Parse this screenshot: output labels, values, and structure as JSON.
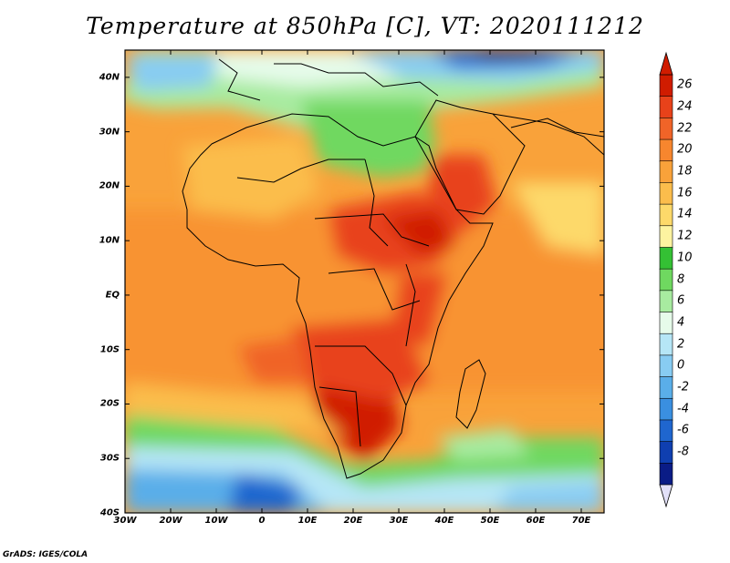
{
  "title": "Temperature at 850hPa [C], VT: 2020111212",
  "credit": "GrADS: IGES/COLA",
  "lat_ticks": [
    "40N",
    "30N",
    "20N",
    "10N",
    "EQ",
    "10S",
    "20S",
    "30S",
    "40S"
  ],
  "lat_values": [
    40,
    30,
    20,
    10,
    0,
    -10,
    -20,
    -30,
    -40
  ],
  "lon_ticks": [
    "30W",
    "20W",
    "10W",
    "0",
    "10E",
    "20E",
    "30E",
    "40E",
    "50E",
    "60E",
    "70E"
  ],
  "lon_values": [
    -30,
    -20,
    -10,
    0,
    10,
    20,
    30,
    40,
    50,
    60,
    70
  ],
  "extent": {
    "lon_min": -30,
    "lon_max": 75,
    "lat_min": -40,
    "lat_max": 45
  },
  "colorbar": {
    "labels": [
      "26",
      "24",
      "22",
      "20",
      "18",
      "16",
      "14",
      "12",
      "10",
      "8",
      "6",
      "4",
      "2",
      "0",
      "-2",
      "-4",
      "-6",
      "-8"
    ],
    "values": [
      26,
      24,
      22,
      20,
      18,
      16,
      14,
      12,
      10,
      8,
      6,
      4,
      2,
      0,
      -2,
      -4,
      -6,
      -8
    ],
    "colors": [
      "#d01c00",
      "#e8421a",
      "#f06428",
      "#f7862e",
      "#f9a23a",
      "#fbbd4c",
      "#fdd96a",
      "#fdf3a0",
      "#34c034",
      "#6fd860",
      "#a8eba0",
      "#e6fbea",
      "#b6e6f6",
      "#88ccf2",
      "#5aaee9",
      "#3a8fe0",
      "#1f66cf",
      "#0f3fb0",
      "#0a1c86"
    ],
    "top_color": "#d01c00",
    "bottom_color": "#e2e0f8"
  }
}
